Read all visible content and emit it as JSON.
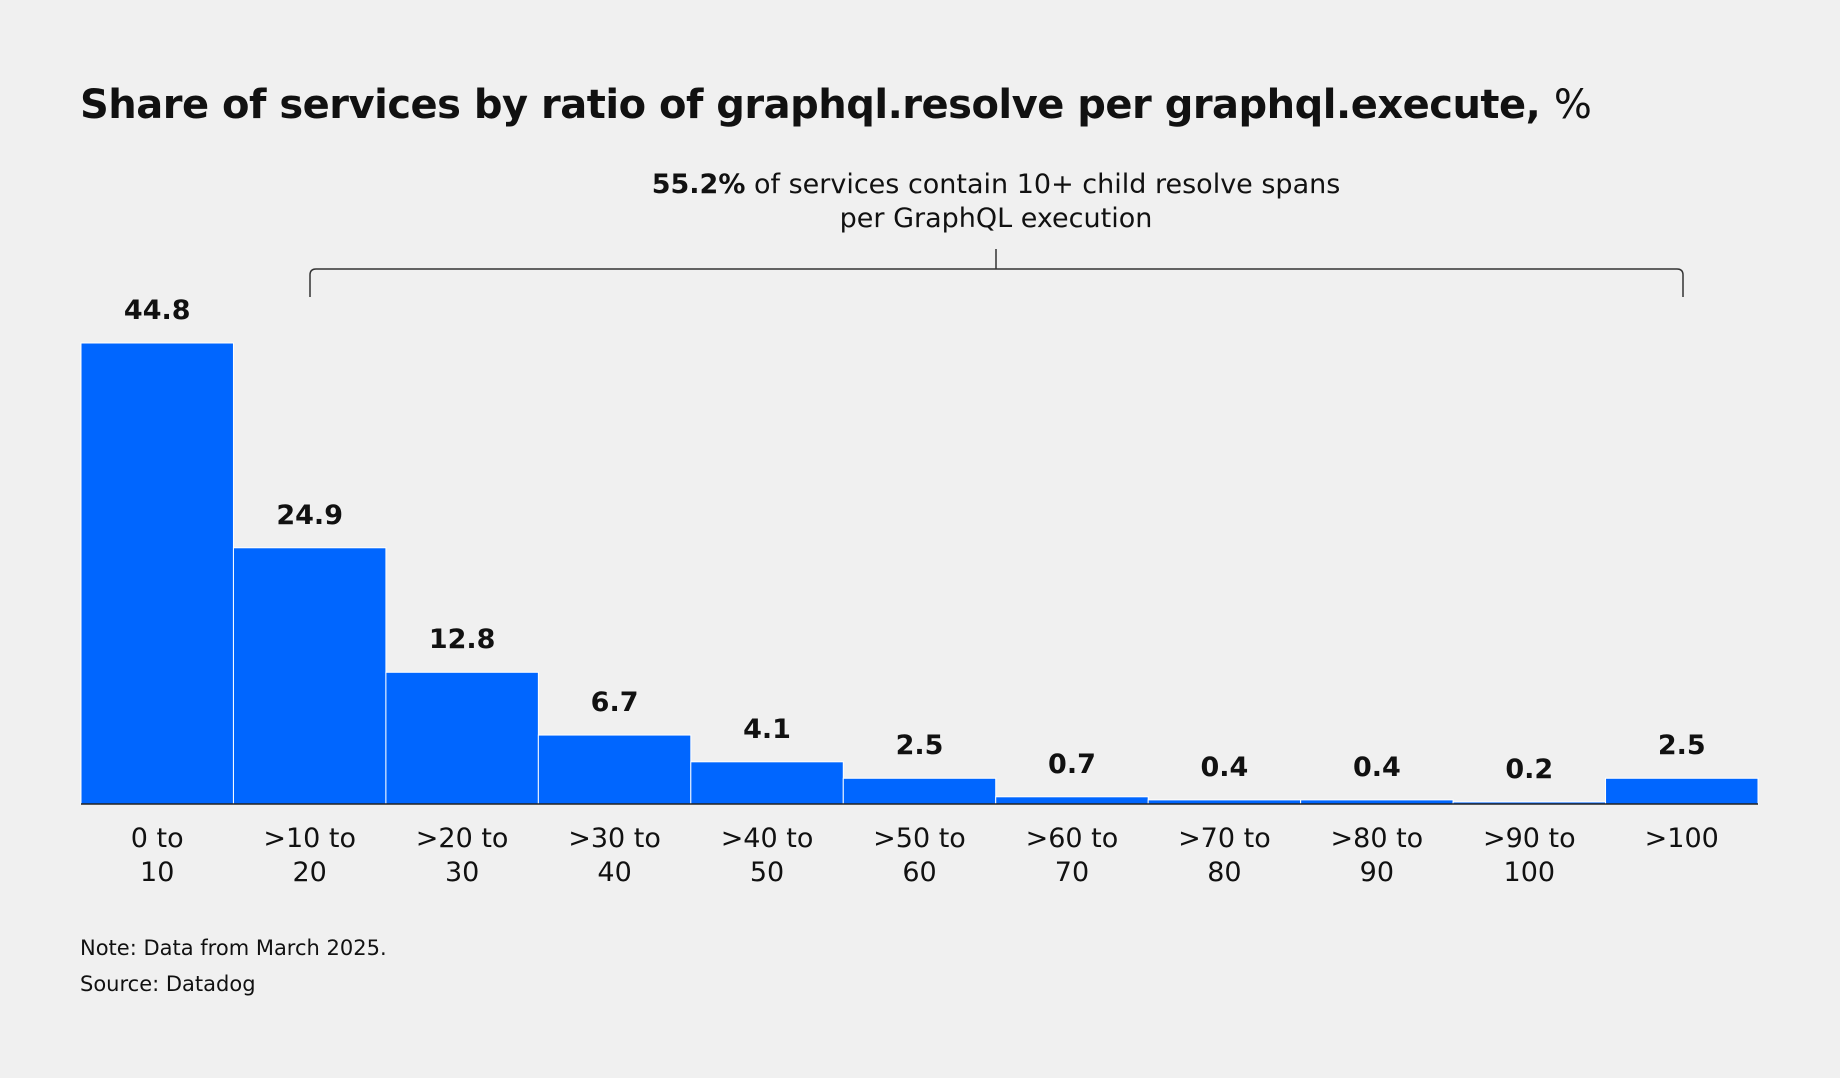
{
  "chart_data": {
    "type": "bar",
    "title": "Share of services by ratio of graphql.resolve per graphql.execute,",
    "title_unit": "%",
    "annotation_highlight": "55.2%",
    "annotation": "of services contain 10+ child resolve spans\nper GraphQL execution",
    "categories": [
      "0 to\n10",
      ">10 to\n20",
      ">20 to\n30",
      ">30 to\n40",
      ">40 to\n50",
      ">50 to\n60",
      ">60 to\n70",
      ">70 to\n80",
      ">80 to\n90",
      ">90 to\n100",
      ">100"
    ],
    "values": [
      44.8,
      24.9,
      12.8,
      6.7,
      4.1,
      2.5,
      0.7,
      0.4,
      0.4,
      0.2,
      2.5
    ],
    "color": "#0066ff",
    "ylim": [
      0,
      44.8
    ],
    "note": "Note: Data from March 2025.",
    "source": "Source: Datadog"
  }
}
